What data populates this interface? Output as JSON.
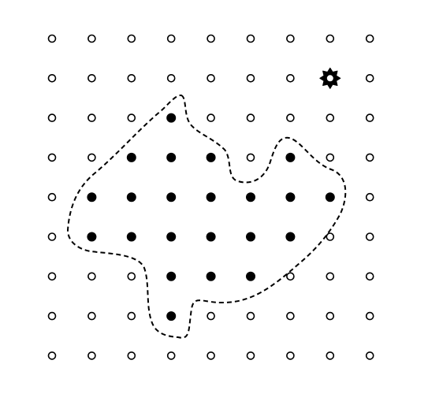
{
  "diagram": {
    "grid": {
      "columns": 9,
      "rows": 9
    },
    "filled_points": [
      {
        "col": 3,
        "row": 2
      },
      {
        "col": 2,
        "row": 3
      },
      {
        "col": 3,
        "row": 3
      },
      {
        "col": 4,
        "row": 3
      },
      {
        "col": 6,
        "row": 3
      },
      {
        "col": 1,
        "row": 4
      },
      {
        "col": 2,
        "row": 4
      },
      {
        "col": 3,
        "row": 4
      },
      {
        "col": 4,
        "row": 4
      },
      {
        "col": 5,
        "row": 4
      },
      {
        "col": 6,
        "row": 4
      },
      {
        "col": 7,
        "row": 4
      },
      {
        "col": 1,
        "row": 5
      },
      {
        "col": 2,
        "row": 5
      },
      {
        "col": 3,
        "row": 5
      },
      {
        "col": 4,
        "row": 5
      },
      {
        "col": 5,
        "row": 5
      },
      {
        "col": 6,
        "row": 5
      },
      {
        "col": 3,
        "row": 6
      },
      {
        "col": 4,
        "row": 6
      },
      {
        "col": 5,
        "row": 6
      },
      {
        "col": 3,
        "row": 7
      }
    ],
    "special_marker": {
      "col": 7,
      "row": 1,
      "icon": "star-gear-icon"
    },
    "boundary": {
      "style": "dashed",
      "color": "#000000"
    },
    "colors": {
      "point_stroke": "#000000",
      "point_fill_empty": "#ffffff",
      "point_fill_filled": "#000000"
    }
  }
}
